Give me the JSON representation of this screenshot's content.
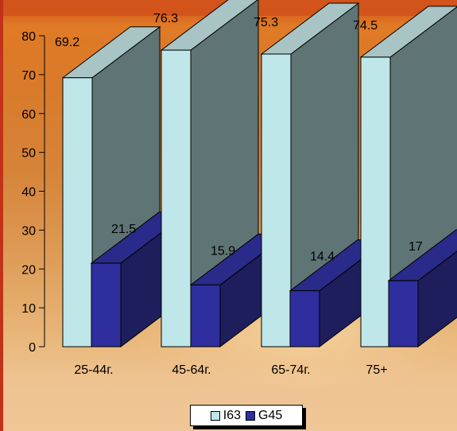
{
  "chart_data": {
    "type": "bar",
    "categories": [
      "25-44г.",
      "45-64г.",
      "65-74г.",
      "75+"
    ],
    "series": [
      {
        "name": "I63",
        "values": [
          69.2,
          76.3,
          75.3,
          74.5
        ],
        "color": "#bfe6e8",
        "side_color": "#5f7474",
        "top_color": "#a8c4c4"
      },
      {
        "name": "G45",
        "values": [
          21.5,
          15.9,
          14.4,
          17
        ],
        "color": "#2e2e9e",
        "side_color": "#1e1e5c",
        "top_color": "#2a2a8a"
      }
    ],
    "data_labels": [
      [
        "69.2",
        "76.3",
        "75.3",
        "74.5"
      ],
      [
        "21.5",
        "15.9",
        "14.4",
        "17"
      ]
    ],
    "yticks": [
      "0",
      "10",
      "20",
      "30",
      "40",
      "50",
      "60",
      "70",
      "80"
    ],
    "ylim": [
      0,
      80
    ],
    "grid": false,
    "legend": "bottom"
  }
}
